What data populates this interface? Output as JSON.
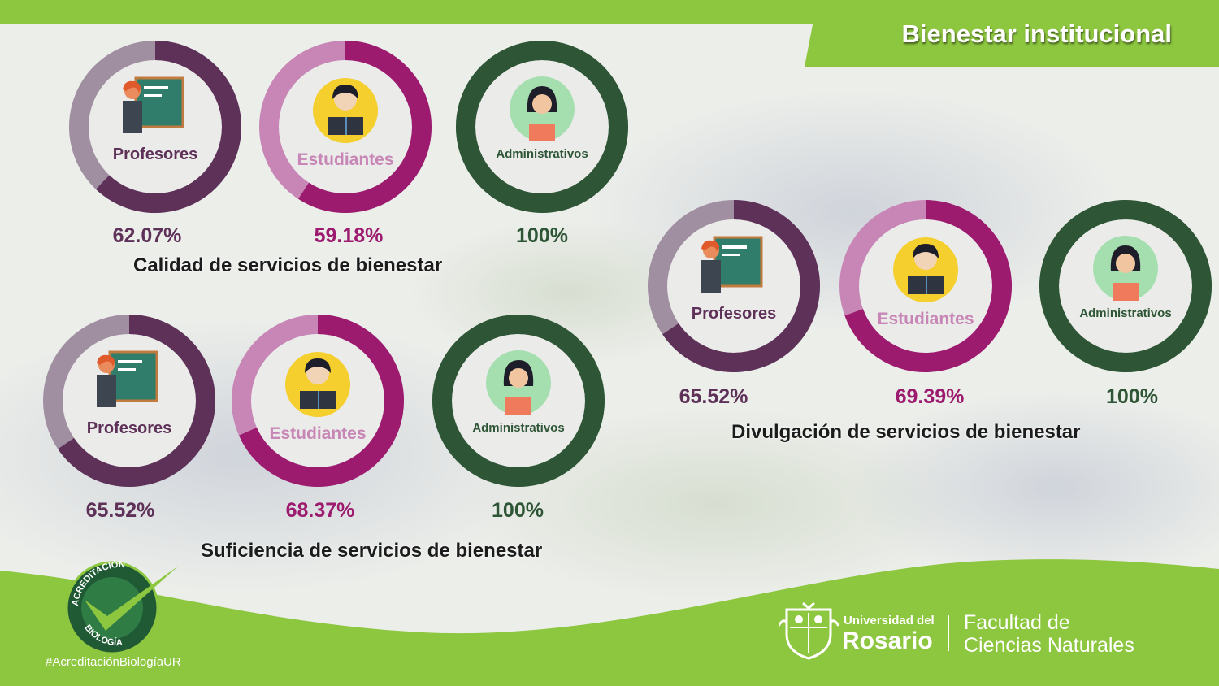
{
  "header": {
    "title": "Bienestar institucional"
  },
  "colors": {
    "accent_green": "#8dc63f",
    "profesores": "#5e3159",
    "estudiantes": "#9c1b6f",
    "administrativos": "#2e5636"
  },
  "chart_data": [
    {
      "type": "pie",
      "title": "Calidad de servicios de bienestar",
      "categories": [
        "Profesores",
        "Estudiantes",
        "Administrativos"
      ],
      "values": [
        62.07,
        59.18,
        100
      ],
      "value_labels": [
        "62.07%",
        "59.18%",
        "100%"
      ],
      "unit": "%"
    },
    {
      "type": "pie",
      "title": "Suficiencia de servicios de bienestar",
      "categories": [
        "Profesores",
        "Estudiantes",
        "Administrativos"
      ],
      "values": [
        65.52,
        68.37,
        100
      ],
      "value_labels": [
        "65.52%",
        "68.37%",
        "100%"
      ],
      "unit": "%"
    },
    {
      "type": "pie",
      "title": "Divulgación de servicios de bienestar",
      "categories": [
        "Profesores",
        "Estudiantes",
        "Administrativos"
      ],
      "values": [
        65.52,
        69.39,
        100
      ],
      "value_labels": [
        "65.52%",
        "69.39%",
        "100%"
      ],
      "unit": "%"
    }
  ],
  "badge": {
    "top_text": "ACREDITACIÓN",
    "bottom_text": "BIOLOGÍA"
  },
  "footer": {
    "hashtag": "#AcreditaciónBiologíaUR",
    "university_line1": "Universidad del",
    "university_line2": "Rosario",
    "faculty_line1": "Facultad de",
    "faculty_line2": "Ciencias Naturales"
  },
  "icons": [
    "teacher-icon",
    "student-icon",
    "admin-icon",
    "university-crest-icon",
    "checkmark-icon"
  ]
}
